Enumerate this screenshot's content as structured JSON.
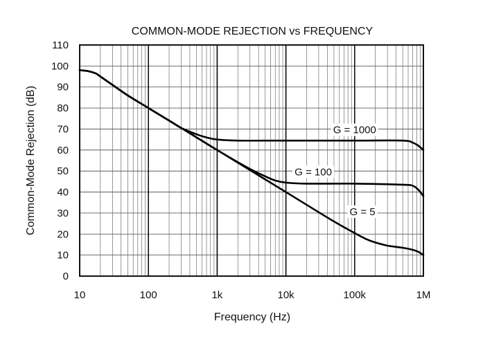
{
  "chart_data": {
    "type": "line",
    "title": "COMMON-MODE REJECTION vs FREQUENCY",
    "xlabel": "Frequency (Hz)",
    "ylabel": "Common-Mode Rejection (dB)",
    "xscale": "log",
    "xlim": [
      10,
      1000000
    ],
    "ylim": [
      0,
      110
    ],
    "grid": true,
    "x_ticks": [
      {
        "value": 10,
        "label": "10"
      },
      {
        "value": 100,
        "label": "100"
      },
      {
        "value": 1000,
        "label": "1k"
      },
      {
        "value": 10000,
        "label": "10k"
      },
      {
        "value": 100000,
        "label": "100k"
      },
      {
        "value": 1000000,
        "label": "1M"
      }
    ],
    "y_ticks": [
      {
        "value": 0,
        "label": "0"
      },
      {
        "value": 10,
        "label": "10"
      },
      {
        "value": 20,
        "label": "20"
      },
      {
        "value": 30,
        "label": "30"
      },
      {
        "value": 40,
        "label": "40"
      },
      {
        "value": 50,
        "label": "50"
      },
      {
        "value": 60,
        "label": "60"
      },
      {
        "value": 70,
        "label": "70"
      },
      {
        "value": 80,
        "label": "80"
      },
      {
        "value": 90,
        "label": "90"
      },
      {
        "value": 100,
        "label": "100"
      },
      {
        "value": 110,
        "label": "110"
      }
    ],
    "series": [
      {
        "name": "G = 1000",
        "label_at": [
          100000,
          68
        ],
        "points": [
          [
            10,
            98
          ],
          [
            13,
            97.6
          ],
          [
            17,
            96.5
          ],
          [
            20,
            95
          ],
          [
            30,
            91
          ],
          [
            50,
            86
          ],
          [
            100,
            80
          ],
          [
            200,
            74
          ],
          [
            300,
            70.5
          ],
          [
            500,
            67.5
          ],
          [
            700,
            66
          ],
          [
            1000,
            65
          ],
          [
            2000,
            64.5
          ],
          [
            10000,
            64.5
          ],
          [
            100000,
            64.5
          ],
          [
            500000,
            64.5
          ],
          [
            700000,
            63.5
          ],
          [
            850000,
            62
          ],
          [
            1000000,
            60
          ]
        ]
      },
      {
        "name": "G = 100",
        "label_at": [
          25000,
          48
        ],
        "points": [
          [
            10,
            98
          ],
          [
            13,
            97.6
          ],
          [
            17,
            96.5
          ],
          [
            20,
            95
          ],
          [
            30,
            91
          ],
          [
            50,
            86
          ],
          [
            100,
            80
          ],
          [
            300,
            70.5
          ],
          [
            1000,
            60
          ],
          [
            3000,
            51
          ],
          [
            5000,
            47.5
          ],
          [
            7000,
            45.5
          ],
          [
            10000,
            44.5
          ],
          [
            20000,
            44
          ],
          [
            100000,
            44
          ],
          [
            500000,
            43.5
          ],
          [
            700000,
            43
          ],
          [
            850000,
            41
          ],
          [
            1000000,
            38
          ]
        ]
      },
      {
        "name": "G = 5",
        "label_at": [
          130000,
          29
        ],
        "points": [
          [
            10,
            98
          ],
          [
            13,
            97.6
          ],
          [
            17,
            96.5
          ],
          [
            20,
            95
          ],
          [
            30,
            91
          ],
          [
            50,
            86
          ],
          [
            100,
            80
          ],
          [
            300,
            70.5
          ],
          [
            1000,
            60
          ],
          [
            10000,
            40
          ],
          [
            50000,
            26
          ],
          [
            100000,
            20.5
          ],
          [
            150000,
            17.5
          ],
          [
            200000,
            16
          ],
          [
            300000,
            14.5
          ],
          [
            500000,
            13.5
          ],
          [
            700000,
            12.5
          ],
          [
            850000,
            11.5
          ],
          [
            1000000,
            10
          ]
        ]
      }
    ]
  }
}
